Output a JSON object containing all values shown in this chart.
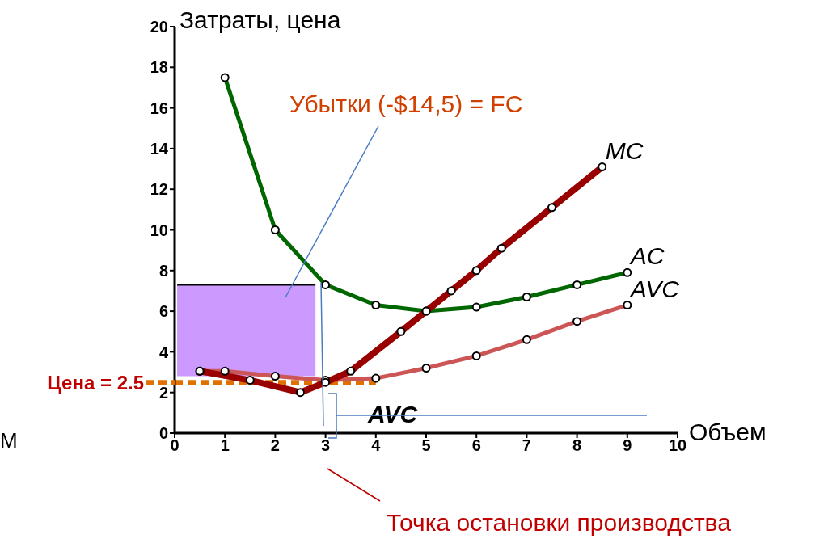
{
  "chart_data": {
    "type": "line",
    "xlabel": "Объем",
    "ylabel": "Затраты, цена",
    "xlim": [
      0,
      10
    ],
    "xticks": [
      0,
      1,
      2,
      3,
      4,
      5,
      6,
      7,
      8,
      9,
      10
    ],
    "ylim": [
      0,
      20
    ],
    "yticks": [
      0,
      2,
      4,
      6,
      8,
      10,
      12,
      14,
      16,
      18,
      20
    ],
    "marker": "circle",
    "series": [
      {
        "type": "line",
        "marker": "none",
        "color": "#000000",
        "x": [
          0.05,
          2.8
        ],
        "values": [
          7.3,
          7.3
        ],
        "lower": [
          2.8,
          2.8
        ],
        "upper": [
          7.3,
          7.3
        ]
      },
      {
        "name": "Цена = 2.5",
        "color": "#e07000",
        "line_style": "dashed",
        "marker": "none",
        "x": [
          0,
          4
        ],
        "values": [
          2.5,
          2.5
        ]
      },
      {
        "name": "AVC",
        "color": "#cc5555",
        "x": [
          0.5,
          1,
          2,
          3,
          4,
          5,
          6,
          7,
          8,
          9
        ],
        "values": [
          3.05,
          3.05,
          2.8,
          2.6,
          2.7,
          3.2,
          3.8,
          4.6,
          5.5,
          6.3
        ]
      },
      {
        "name": "AC",
        "color": "#006600",
        "x": [
          1,
          2,
          3,
          4,
          5,
          6,
          7,
          8,
          9
        ],
        "values": [
          17.5,
          10,
          7.3,
          6.3,
          6,
          6.2,
          6.7,
          7.3,
          7.9
        ]
      },
      {
        "name": "MC",
        "color": "#990000",
        "x": [
          0.5,
          1.5,
          2.5,
          3,
          3.5,
          4.5,
          5,
          5.5,
          6,
          6.5,
          7.5,
          8.5
        ],
        "values": [
          3.05,
          2.6,
          2,
          2.5,
          3.05,
          5,
          6,
          7,
          8,
          9.1,
          11.1,
          13.1
        ]
      }
    ],
    "annotations": [
      "Убытки (-$14,5) = FC",
      "AVC",
      "Точка остановки производства",
      "М"
    ]
  }
}
